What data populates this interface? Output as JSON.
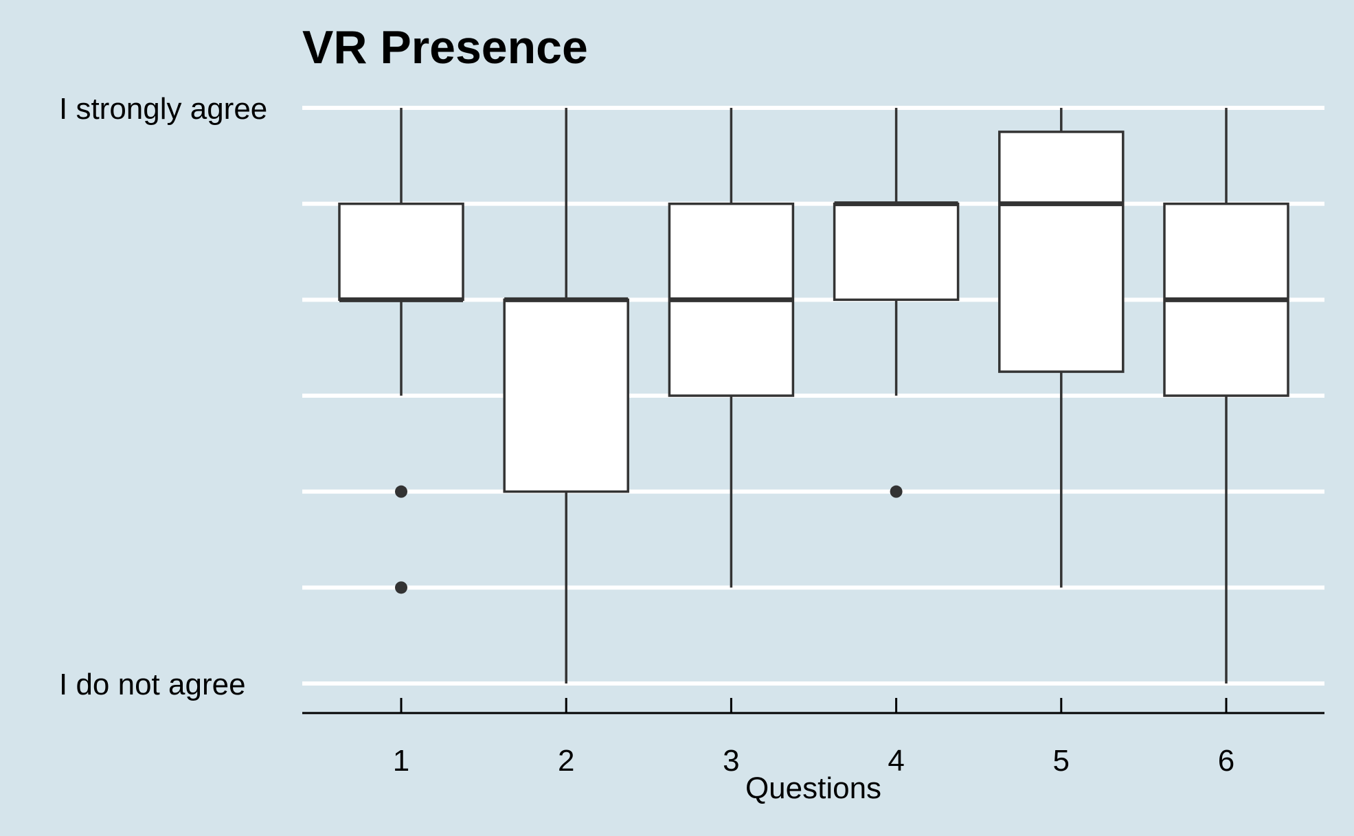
{
  "chart_data": {
    "type": "box",
    "title": "VR Presence",
    "xlabel": "Questions",
    "ylabel": "",
    "ylim": [
      1,
      7
    ],
    "y_ticks": [
      1,
      2,
      3,
      4,
      5,
      6,
      7
    ],
    "y_tick_labels": [
      {
        "value": 7,
        "label": "I strongly agree"
      },
      {
        "value": 1,
        "label": "I do not agree"
      }
    ],
    "grid": "horizontal",
    "categories": [
      "1",
      "2",
      "3",
      "4",
      "5",
      "6"
    ],
    "boxes": [
      {
        "category": "1",
        "whisker_low": 4,
        "q1": 5,
        "median": 5,
        "q3": 6,
        "whisker_high": 7,
        "outliers": [
          3,
          2
        ]
      },
      {
        "category": "2",
        "whisker_low": 1,
        "q1": 3,
        "median": 5,
        "q3": 5,
        "whisker_high": 7,
        "outliers": []
      },
      {
        "category": "3",
        "whisker_low": 2,
        "q1": 4,
        "median": 5,
        "q3": 6,
        "whisker_high": 7,
        "outliers": []
      },
      {
        "category": "4",
        "whisker_low": 4,
        "q1": 5,
        "median": 6,
        "q3": 6,
        "whisker_high": 7,
        "outliers": [
          3
        ]
      },
      {
        "category": "5",
        "whisker_low": 2,
        "q1": 4.25,
        "median": 6,
        "q3": 6.75,
        "whisker_high": 7,
        "outliers": []
      },
      {
        "category": "6",
        "whisker_low": 1,
        "q1": 4,
        "median": 5,
        "q3": 6,
        "whisker_high": 7,
        "outliers": []
      }
    ],
    "colors": {
      "background": "#d5e4eb",
      "grid": "#ffffff",
      "box_fill": "#ffffff",
      "box_stroke": "#333333",
      "axis": "#000000"
    }
  }
}
